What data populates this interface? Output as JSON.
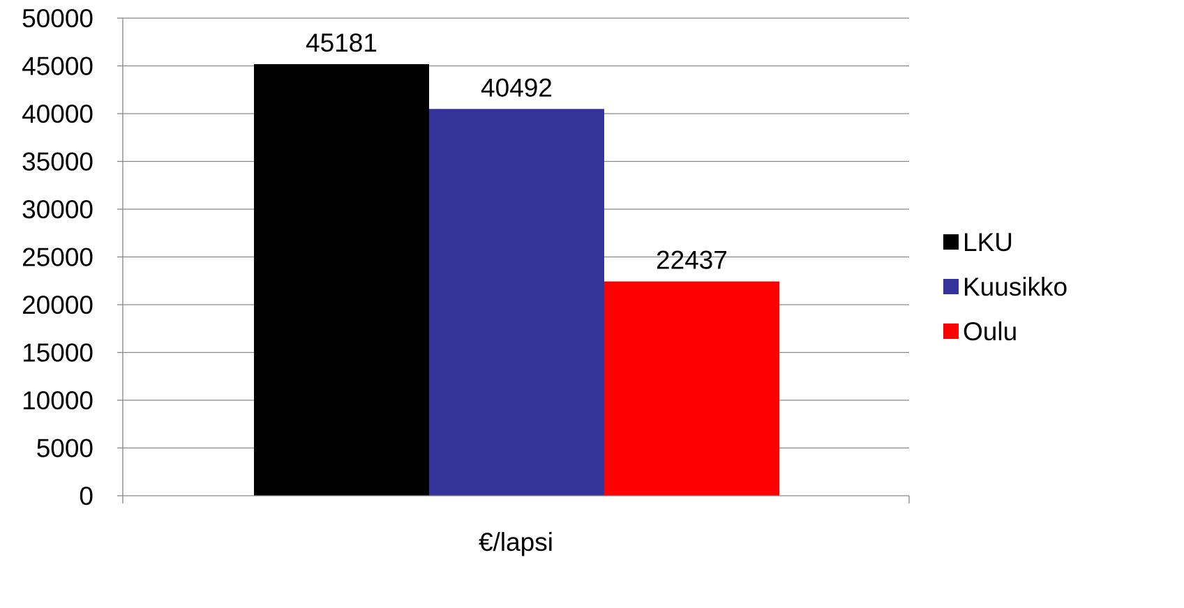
{
  "chart_data": {
    "type": "bar",
    "title": "",
    "xlabel": "",
    "ylabel": "",
    "categories": [
      "€/lapsi"
    ],
    "series": [
      {
        "name": "LKU",
        "values": [
          45181
        ],
        "color": "#000000"
      },
      {
        "name": "Kuusikko",
        "values": [
          40492
        ],
        "color": "#333399"
      },
      {
        "name": "Oulu",
        "values": [
          22437
        ],
        "color": "#ff0000"
      }
    ],
    "ylim": [
      0,
      50000
    ],
    "yticks": [
      0,
      5000,
      10000,
      15000,
      20000,
      25000,
      30000,
      35000,
      40000,
      45000,
      50000
    ],
    "ytick_labels": [
      "0",
      "5000",
      "10000",
      "15000",
      "20000",
      "25000",
      "30000",
      "35000",
      "40000",
      "45000",
      "50000"
    ],
    "data_labels": [
      "45181",
      "40492",
      "22437"
    ],
    "grid": true,
    "grid_color": "#868686",
    "legend_placement": "right"
  }
}
